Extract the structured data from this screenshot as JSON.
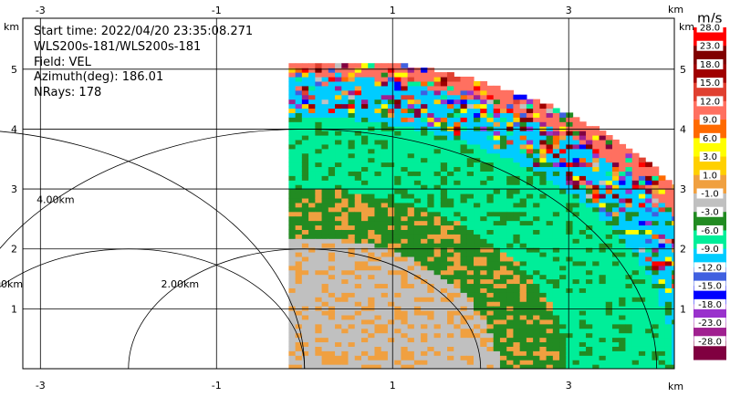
{
  "chart_data": {
    "type": "heatmap",
    "title": "",
    "info_lines": [
      "Start time: 2022/04/20 23:35:08.271",
      "WLS200s-181/WLS200s-181",
      "Field: VEL",
      "Azimuth(deg): 186.01",
      "NRays: 178"
    ],
    "x_unit": "km",
    "y_unit": "km",
    "xlim": [
      -3.2,
      4.2
    ],
    "ylim": [
      0.0,
      5.85
    ],
    "x_ticks": [
      -3,
      -1,
      1,
      3
    ],
    "y_ticks": [
      1,
      2,
      3,
      4,
      5
    ],
    "x_tick_labels": [
      "-3",
      "-1",
      "1",
      "3"
    ],
    "y_tick_labels": [
      "1",
      "2",
      "3",
      "4",
      "5"
    ],
    "grid": true,
    "range_rings": [
      {
        "label": "2.00km",
        "radius_km": 2.0,
        "center": [
          0.0,
          0.0
        ]
      },
      {
        "label": "2.00km",
        "radius_km": 2.0,
        "center": [
          -2.0,
          0.0
        ]
      },
      {
        "label": "4.00km",
        "radius_km": 4.0,
        "center": [
          0.0,
          0.0
        ]
      },
      {
        "label": "4.00km",
        "radius_km": 4.0,
        "center": [
          -4.0,
          0.0
        ]
      }
    ],
    "data_sector": {
      "x_min_km": -0.18,
      "max_range_km": 5.2,
      "top_y_km": 5.05
    },
    "velocity_bands": [
      {
        "r_from": 0.0,
        "r_to": 1.0,
        "value_m_s": -2.0
      },
      {
        "r_from": 1.0,
        "r_to": 2.2,
        "value_m_s": -2.0
      },
      {
        "r_from": 2.2,
        "r_to": 3.0,
        "value_m_s": -5.0
      },
      {
        "r_from": 3.0,
        "r_to": 4.2,
        "value_m_s": -8.0
      },
      {
        "r_from": 4.2,
        "r_to": 4.9,
        "value_m_s": -12.0
      },
      {
        "r_from": 4.9,
        "r_to": 5.2,
        "value_m_s": 10.0
      }
    ],
    "colorbar": {
      "unit": "m/s",
      "labels": [
        "28.0",
        "23.0",
        "18.0",
        "15.0",
        "12.0",
        "9.0",
        "6.0",
        "3.0",
        "1.0",
        "-1.0",
        "-3.0",
        "-6.0",
        "-9.0",
        "-12.0",
        "-15.0",
        "-18.0",
        "-23.0",
        "-28.0"
      ],
      "colors": [
        "#ff0000",
        "#800000",
        "#a00000",
        "#e04030",
        "#ff7060",
        "#ff6a00",
        "#ffff00",
        "#ffd000",
        "#f0a040",
        "#c0c0c0",
        "#228b22",
        "#00ee99",
        "#00ccff",
        "#4060e0",
        "#0000ff",
        "#9932cc",
        "#a02090",
        "#800040"
      ]
    }
  }
}
